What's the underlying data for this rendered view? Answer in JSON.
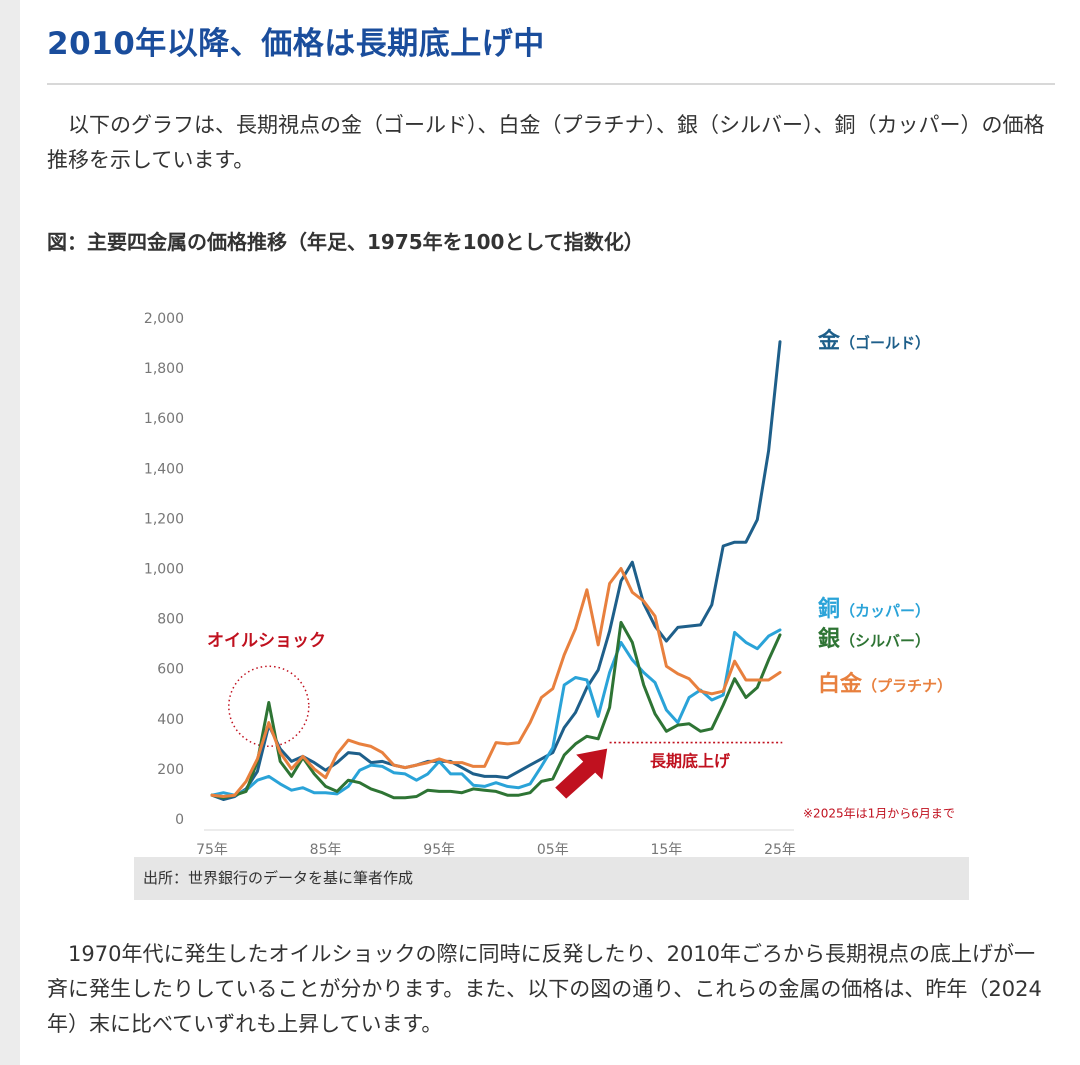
{
  "heading": "2010年以降、価格は長期底上げ中",
  "intro": "　以下のグラフは、長期視点の金（ゴールド）、白金（プラチナ）、銀（シルバー）、銅（カッパー）の価格推移を示しています。",
  "figure_title": "図：主要四金属の価格推移（年足、1975年を100として指数化）",
  "source": "出所：世界銀行のデータを基に筆者作成",
  "conclusion": "　1970年代に発生したオイルショックの際に同時に反発したり、2010年ごろから長期視点の底上げが一斉に発生したりしていることが分かります。また、以下の図の通り、これらの金属の価格は、昨年（2024年）末に比べていずれも上昇しています。",
  "chart_data": {
    "type": "line",
    "title": "図：主要四金属の価格推移（年足、1975年を100として指数化）",
    "ylim": [
      0,
      2000
    ],
    "yticks": [
      0,
      200,
      400,
      600,
      800,
      1000,
      1200,
      1400,
      1600,
      1800,
      2000
    ],
    "ytick_labels": [
      "0",
      "200",
      "400",
      "600",
      "800",
      "1,000",
      "1,200",
      "1,400",
      "1,600",
      "1,800",
      "2,000"
    ],
    "xlim": [
      1975,
      2025
    ],
    "xticks": [
      1975,
      1985,
      1995,
      2005,
      2015,
      2025
    ],
    "xtick_labels": [
      "75年",
      "85年",
      "95年",
      "05年",
      "15年",
      "25年"
    ],
    "grid": false,
    "series": [
      {
        "name": "金",
        "sub": "（ゴールド）",
        "color": "#1e5f8a",
        "values": [
          [
            1975,
            95
          ],
          [
            1976,
            78
          ],
          [
            1977,
            90
          ],
          [
            1978,
            120
          ],
          [
            1979,
            190
          ],
          [
            1980,
            375
          ],
          [
            1981,
            280
          ],
          [
            1982,
            230
          ],
          [
            1983,
            250
          ],
          [
            1984,
            225
          ],
          [
            1985,
            195
          ],
          [
            1986,
            225
          ],
          [
            1987,
            265
          ],
          [
            1988,
            260
          ],
          [
            1989,
            225
          ],
          [
            1990,
            230
          ],
          [
            1991,
            215
          ],
          [
            1992,
            205
          ],
          [
            1993,
            215
          ],
          [
            1994,
            230
          ],
          [
            1995,
            230
          ],
          [
            1996,
            230
          ],
          [
            1997,
            205
          ],
          [
            1998,
            180
          ],
          [
            1999,
            170
          ],
          [
            2000,
            170
          ],
          [
            2001,
            165
          ],
          [
            2002,
            190
          ],
          [
            2003,
            215
          ],
          [
            2004,
            240
          ],
          [
            2005,
            265
          ],
          [
            2006,
            365
          ],
          [
            2007,
            425
          ],
          [
            2008,
            525
          ],
          [
            2009,
            595
          ],
          [
            2010,
            750
          ],
          [
            2011,
            950
          ],
          [
            2012,
            1025
          ],
          [
            2013,
            860
          ],
          [
            2014,
            770
          ],
          [
            2015,
            710
          ],
          [
            2016,
            765
          ],
          [
            2017,
            770
          ],
          [
            2018,
            775
          ],
          [
            2019,
            855
          ],
          [
            2020,
            1090
          ],
          [
            2021,
            1105
          ],
          [
            2022,
            1105
          ],
          [
            2023,
            1195
          ],
          [
            2024,
            1470
          ],
          [
            2025,
            1905
          ]
        ]
      },
      {
        "name": "銅",
        "sub": "（カッパー）",
        "color": "#2aa3d8",
        "values": [
          [
            1975,
            95
          ],
          [
            1976,
            105
          ],
          [
            1977,
            95
          ],
          [
            1978,
            115
          ],
          [
            1979,
            155
          ],
          [
            1980,
            170
          ],
          [
            1981,
            140
          ],
          [
            1982,
            115
          ],
          [
            1983,
            125
          ],
          [
            1984,
            105
          ],
          [
            1985,
            105
          ],
          [
            1986,
            100
          ],
          [
            1987,
            130
          ],
          [
            1988,
            195
          ],
          [
            1989,
            215
          ],
          [
            1990,
            210
          ],
          [
            1991,
            185
          ],
          [
            1992,
            180
          ],
          [
            1993,
            155
          ],
          [
            1994,
            180
          ],
          [
            1995,
            230
          ],
          [
            1996,
            180
          ],
          [
            1997,
            180
          ],
          [
            1998,
            135
          ],
          [
            1999,
            130
          ],
          [
            2000,
            145
          ],
          [
            2001,
            130
          ],
          [
            2002,
            125
          ],
          [
            2003,
            140
          ],
          [
            2004,
            210
          ],
          [
            2005,
            285
          ],
          [
            2006,
            535
          ],
          [
            2007,
            565
          ],
          [
            2008,
            555
          ],
          [
            2009,
            410
          ],
          [
            2010,
            585
          ],
          [
            2011,
            705
          ],
          [
            2012,
            635
          ],
          [
            2013,
            585
          ],
          [
            2014,
            545
          ],
          [
            2015,
            435
          ],
          [
            2016,
            385
          ],
          [
            2017,
            485
          ],
          [
            2018,
            515
          ],
          [
            2019,
            475
          ],
          [
            2020,
            495
          ],
          [
            2021,
            745
          ],
          [
            2022,
            705
          ],
          [
            2023,
            680
          ],
          [
            2024,
            730
          ],
          [
            2025,
            755
          ]
        ]
      },
      {
        "name": "銀",
        "sub": "（シルバー）",
        "color": "#2e7434",
        "values": [
          [
            1975,
            95
          ],
          [
            1976,
            85
          ],
          [
            1977,
            95
          ],
          [
            1978,
            110
          ],
          [
            1979,
            230
          ],
          [
            1980,
            465
          ],
          [
            1981,
            230
          ],
          [
            1982,
            170
          ],
          [
            1983,
            245
          ],
          [
            1984,
            180
          ],
          [
            1985,
            130
          ],
          [
            1986,
            110
          ],
          [
            1987,
            155
          ],
          [
            1988,
            145
          ],
          [
            1989,
            120
          ],
          [
            1990,
            105
          ],
          [
            1991,
            85
          ],
          [
            1992,
            85
          ],
          [
            1993,
            90
          ],
          [
            1994,
            115
          ],
          [
            1995,
            110
          ],
          [
            1996,
            110
          ],
          [
            1997,
            105
          ],
          [
            1998,
            120
          ],
          [
            1999,
            115
          ],
          [
            2000,
            110
          ],
          [
            2001,
            95
          ],
          [
            2002,
            95
          ],
          [
            2003,
            105
          ],
          [
            2004,
            150
          ],
          [
            2005,
            160
          ],
          [
            2006,
            255
          ],
          [
            2007,
            300
          ],
          [
            2008,
            330
          ],
          [
            2009,
            320
          ],
          [
            2010,
            445
          ],
          [
            2011,
            785
          ],
          [
            2012,
            705
          ],
          [
            2013,
            535
          ],
          [
            2014,
            420
          ],
          [
            2015,
            350
          ],
          [
            2016,
            375
          ],
          [
            2017,
            380
          ],
          [
            2018,
            350
          ],
          [
            2019,
            360
          ],
          [
            2020,
            455
          ],
          [
            2021,
            560
          ],
          [
            2022,
            485
          ],
          [
            2023,
            525
          ],
          [
            2024,
            635
          ],
          [
            2025,
            735
          ]
        ]
      },
      {
        "name": "白金",
        "sub": "（プラチナ）",
        "color": "#e8803e",
        "values": [
          [
            1975,
            95
          ],
          [
            1976,
            90
          ],
          [
            1977,
            95
          ],
          [
            1978,
            150
          ],
          [
            1979,
            240
          ],
          [
            1980,
            385
          ],
          [
            1981,
            265
          ],
          [
            1982,
            200
          ],
          [
            1983,
            250
          ],
          [
            1984,
            200
          ],
          [
            1985,
            165
          ],
          [
            1986,
            260
          ],
          [
            1987,
            315
          ],
          [
            1988,
            300
          ],
          [
            1989,
            290
          ],
          [
            1990,
            265
          ],
          [
            1991,
            215
          ],
          [
            1992,
            205
          ],
          [
            1993,
            215
          ],
          [
            1994,
            225
          ],
          [
            1995,
            240
          ],
          [
            1996,
            225
          ],
          [
            1997,
            225
          ],
          [
            1998,
            210
          ],
          [
            1999,
            210
          ],
          [
            2000,
            305
          ],
          [
            2001,
            300
          ],
          [
            2002,
            305
          ],
          [
            2003,
            385
          ],
          [
            2004,
            485
          ],
          [
            2005,
            520
          ],
          [
            2006,
            655
          ],
          [
            2007,
            760
          ],
          [
            2008,
            915
          ],
          [
            2009,
            695
          ],
          [
            2010,
            940
          ],
          [
            2011,
            1000
          ],
          [
            2012,
            905
          ],
          [
            2013,
            870
          ],
          [
            2014,
            810
          ],
          [
            2015,
            610
          ],
          [
            2016,
            580
          ],
          [
            2017,
            560
          ],
          [
            2018,
            510
          ],
          [
            2019,
            500
          ],
          [
            2020,
            510
          ],
          [
            2021,
            630
          ],
          [
            2022,
            555
          ],
          [
            2023,
            555
          ],
          [
            2024,
            555
          ],
          [
            2025,
            585
          ]
        ]
      }
    ],
    "annotations": {
      "oil_shock": "オイルショック",
      "long_term_bottom": "長期底上げ",
      "note": "※2025年は1月から6月まで"
    }
  }
}
